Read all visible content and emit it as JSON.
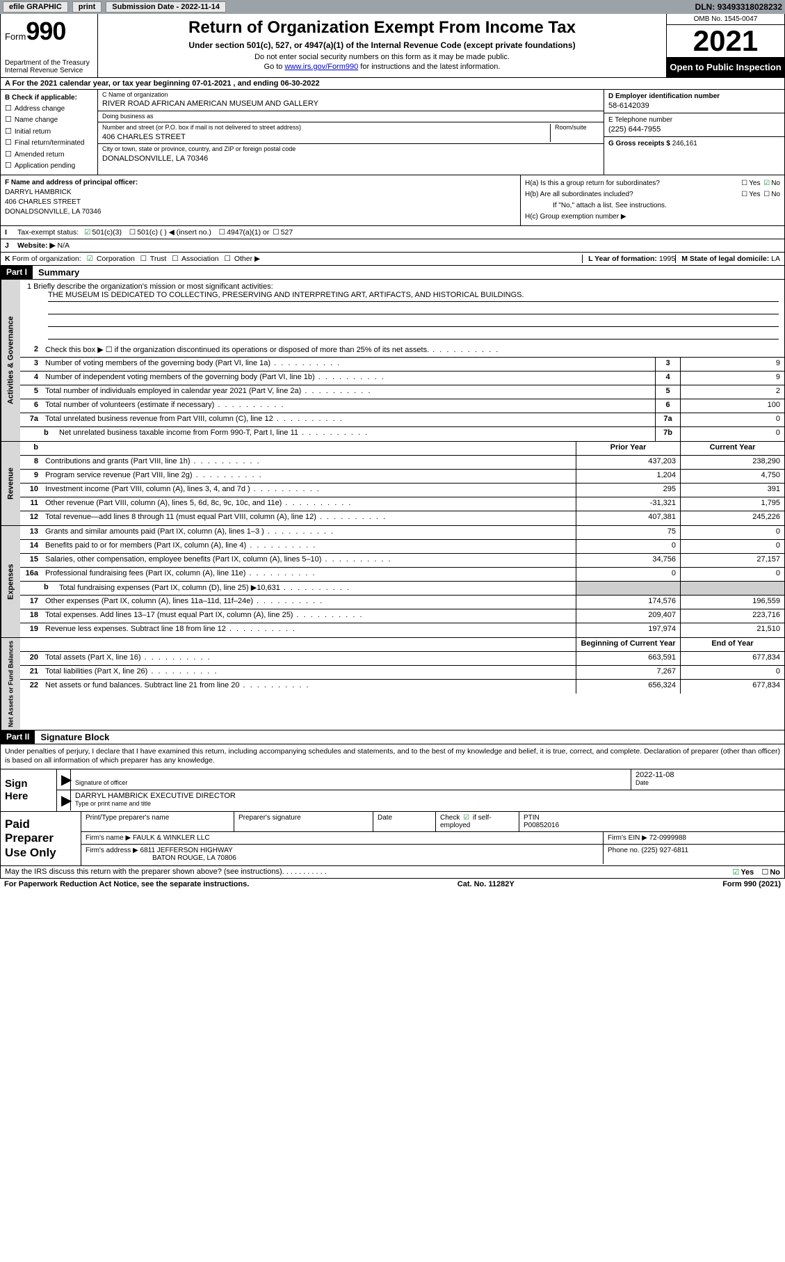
{
  "topbar": {
    "efile": "efile GRAPHIC",
    "print": "print",
    "submission_label": "Submission Date",
    "submission_date": "2022-11-14",
    "dln_label": "DLN:",
    "dln": "93493318028232"
  },
  "header": {
    "form_prefix": "Form",
    "form_num": "990",
    "dept": "Department of the Treasury\nInternal Revenue Service",
    "title": "Return of Organization Exempt From Income Tax",
    "sub": "Under section 501(c), 527, or 4947(a)(1) of the Internal Revenue Code (except private foundations)",
    "note1": "Do not enter social security numbers on this form as it may be made public.",
    "note2_pre": "Go to ",
    "note2_link": "www.irs.gov/Form990",
    "note2_post": " for instructions and the latest information.",
    "omb": "OMB No. 1545-0047",
    "year": "2021",
    "open_public": "Open to Public Inspection"
  },
  "row_a": "A For the 2021 calendar year, or tax year beginning 07-01-2021  , and ending 06-30-2022",
  "sec_b": {
    "label": "B Check if applicable:",
    "items": [
      "Address change",
      "Name change",
      "Initial return",
      "Final return/terminated",
      "Amended return",
      "Application pending"
    ]
  },
  "sec_c": {
    "name_label": "C Name of organization",
    "name": "RIVER ROAD AFRICAN AMERICAN MUSEUM AND GALLERY",
    "dba_label": "Doing business as",
    "dba": "",
    "addr_label": "Number and street (or P.O. box if mail is not delivered to street address)",
    "room_label": "Room/suite",
    "addr": "406 CHARLES STREET",
    "city_label": "City or town, state or province, country, and ZIP or foreign postal code",
    "city": "DONALDSONVILLE, LA  70346"
  },
  "sec_d": {
    "label": "D Employer identification number",
    "val": "58-6142039"
  },
  "sec_e": {
    "label": "E Telephone number",
    "val": "(225) 644-7955"
  },
  "sec_g": {
    "label": "G Gross receipts $",
    "val": "246,161"
  },
  "sec_f": {
    "label": "F  Name and address of principal officer:",
    "name": "DARRYL HAMBRICK",
    "addr1": "406 CHARLES STREET",
    "addr2": "DONALDSONVILLE, LA  70346"
  },
  "sec_h": {
    "ha": "H(a)  Is this a group return for subordinates?",
    "hb": "H(b)  Are all subordinates included?",
    "hb_note": "If \"No,\" attach a list. See instructions.",
    "hc": "H(c)  Group exemption number ▶"
  },
  "row_i": {
    "lead": "I",
    "label": "Tax-exempt status:",
    "opts": [
      "501(c)(3)",
      "501(c) (  ) ◀ (insert no.)",
      "4947(a)(1) or",
      "527"
    ],
    "checked": 0
  },
  "row_j": {
    "lead": "J",
    "label": "Website: ▶",
    "val": "N/A"
  },
  "row_k": {
    "lead": "K",
    "label": "Form of organization:",
    "opts": [
      "Corporation",
      "Trust",
      "Association",
      "Other ▶"
    ],
    "checked": 0,
    "l_label": "L Year of formation:",
    "l_val": "1995",
    "m_label": "M State of legal domicile:",
    "m_val": "LA"
  },
  "part1": {
    "hdr": "Part I",
    "title": "Summary"
  },
  "mission_label": "1   Briefly describe the organization's mission or most significant activities:",
  "mission": "THE MUSEUM IS DEDICATED TO COLLECTING, PRESERVING AND INTERPRETING ART, ARTIFACTS, AND HISTORICAL BUILDINGS.",
  "gov_rows": [
    {
      "n": "2",
      "txt": "Check this box ▶ ☐  if the organization discontinued its operations or disposed of more than 25% of its net assets."
    },
    {
      "n": "3",
      "txt": "Number of voting members of the governing body (Part VI, line 1a)",
      "box": "3",
      "val": "9"
    },
    {
      "n": "4",
      "txt": "Number of independent voting members of the governing body (Part VI, line 1b)",
      "box": "4",
      "val": "9"
    },
    {
      "n": "5",
      "txt": "Total number of individuals employed in calendar year 2021 (Part V, line 2a)",
      "box": "5",
      "val": "2"
    },
    {
      "n": "6",
      "txt": "Total number of volunteers (estimate if necessary)",
      "box": "6",
      "val": "100"
    },
    {
      "n": "7a",
      "txt": "Total unrelated business revenue from Part VIII, column (C), line 12",
      "box": "7a",
      "val": "0"
    },
    {
      "n": "b",
      "txt": "Net unrelated business taxable income from Form 990-T, Part I, line 11",
      "box": "7b",
      "val": "0",
      "indent": true
    }
  ],
  "rev_hdr": {
    "c1": "Prior Year",
    "c2": "Current Year"
  },
  "rev_rows": [
    {
      "n": "8",
      "txt": "Contributions and grants (Part VIII, line 1h)",
      "py": "437,203",
      "cy": "238,290"
    },
    {
      "n": "9",
      "txt": "Program service revenue (Part VIII, line 2g)",
      "py": "1,204",
      "cy": "4,750"
    },
    {
      "n": "10",
      "txt": "Investment income (Part VIII, column (A), lines 3, 4, and 7d )",
      "py": "295",
      "cy": "391"
    },
    {
      "n": "11",
      "txt": "Other revenue (Part VIII, column (A), lines 5, 6d, 8c, 9c, 10c, and 11e)",
      "py": "-31,321",
      "cy": "1,795"
    },
    {
      "n": "12",
      "txt": "Total revenue—add lines 8 through 11 (must equal Part VIII, column (A), line 12)",
      "py": "407,381",
      "cy": "245,226"
    }
  ],
  "exp_rows": [
    {
      "n": "13",
      "txt": "Grants and similar amounts paid (Part IX, column (A), lines 1–3 )",
      "py": "75",
      "cy": "0"
    },
    {
      "n": "14",
      "txt": "Benefits paid to or for members (Part IX, column (A), line 4)",
      "py": "0",
      "cy": "0"
    },
    {
      "n": "15",
      "txt": "Salaries, other compensation, employee benefits (Part IX, column (A), lines 5–10)",
      "py": "34,756",
      "cy": "27,157"
    },
    {
      "n": "16a",
      "txt": "Professional fundraising fees (Part IX, column (A), line 11e)",
      "py": "0",
      "cy": "0"
    },
    {
      "n": "b",
      "txt": "Total fundraising expenses (Part IX, column (D), line 25) ▶10,631",
      "gray": true,
      "indent": true
    },
    {
      "n": "17",
      "txt": "Other expenses (Part IX, column (A), lines 11a–11d, 11f–24e)",
      "py": "174,576",
      "cy": "196,559"
    },
    {
      "n": "18",
      "txt": "Total expenses. Add lines 13–17 (must equal Part IX, column (A), line 25)",
      "py": "209,407",
      "cy": "223,716"
    },
    {
      "n": "19",
      "txt": "Revenue less expenses. Subtract line 18 from line 12",
      "py": "197,974",
      "cy": "21,510"
    }
  ],
  "na_hdr": {
    "c1": "Beginning of Current Year",
    "c2": "End of Year"
  },
  "na_rows": [
    {
      "n": "20",
      "txt": "Total assets (Part X, line 16)",
      "py": "663,591",
      "cy": "677,834"
    },
    {
      "n": "21",
      "txt": "Total liabilities (Part X, line 26)",
      "py": "7,267",
      "cy": "0"
    },
    {
      "n": "22",
      "txt": "Net assets or fund balances. Subtract line 21 from line 20",
      "py": "656,324",
      "cy": "677,834"
    }
  ],
  "vtabs": {
    "gov": "Activities & Governance",
    "rev": "Revenue",
    "exp": "Expenses",
    "na": "Net Assets or Fund Balances"
  },
  "part2": {
    "hdr": "Part II",
    "title": "Signature Block"
  },
  "sig_decl": "Under penalties of perjury, I declare that I have examined this return, including accompanying schedules and statements, and to the best of my knowledge and belief, it is true, correct, and complete. Declaration of preparer (other than officer) is based on all information of which preparer has any knowledge.",
  "sign_here": {
    "label": "Sign Here",
    "sig_officer": "Signature of officer",
    "date_label": "Date",
    "date": "2022-11-08",
    "name": "DARRYL HAMBRICK  EXECUTIVE DIRECTOR",
    "name_label": "Type or print name and title"
  },
  "paid": {
    "label": "Paid Preparer Use Only",
    "r1": {
      "c1_label": "Print/Type preparer's name",
      "c2_label": "Preparer's signature",
      "c3_label": "Date",
      "c4_label": "Check",
      "c4_sub": "if self-employed",
      "c5_label": "PTIN",
      "c5_val": "P00852016"
    },
    "r2": {
      "label": "Firm's name    ▶",
      "val": "FAULK & WINKLER LLC",
      "ein_label": "Firm's EIN ▶",
      "ein": "72-0999988"
    },
    "r3": {
      "label": "Firm's address ▶",
      "val": "6811 JEFFERSON HIGHWAY",
      "val2": "BATON ROUGE, LA  70806",
      "phone_label": "Phone no.",
      "phone": "(225) 927-6811"
    }
  },
  "discuss": {
    "txt": "May the IRS discuss this return with the preparer shown above? (see instructions)",
    "yes": "Yes",
    "no": "No"
  },
  "footer": {
    "left": "For Paperwork Reduction Act Notice, see the separate instructions.",
    "mid": "Cat. No. 11282Y",
    "right_pre": "Form ",
    "right_form": "990",
    "right_post": " (2021)"
  }
}
